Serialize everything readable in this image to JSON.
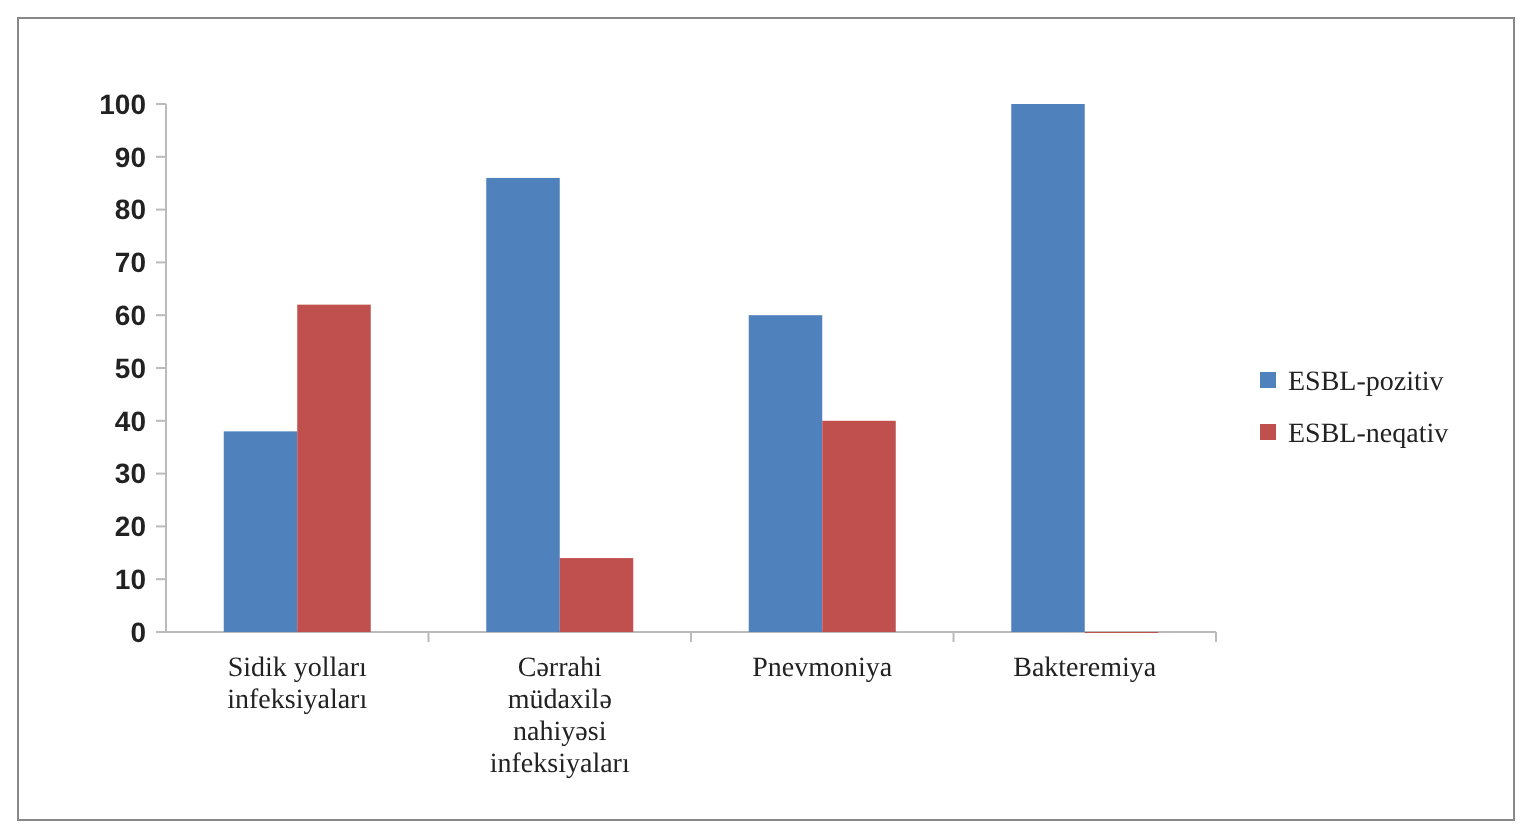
{
  "chart_data": {
    "type": "bar",
    "categories": [
      "Sidik yolları infeksiyaları",
      "Cərrahi müdaxilə nahiyəsi infeksiyaları",
      "Pnevmoniya",
      "Bakteremiya"
    ],
    "series": [
      {
        "name": "ESBL-pozitiv",
        "color": "#4f81bd",
        "values": [
          38,
          86,
          60,
          100
        ]
      },
      {
        "name": "ESBL-neqativ",
        "color": "#c0504d",
        "values": [
          62,
          14,
          40,
          0
        ]
      }
    ],
    "ylim": [
      0,
      100
    ],
    "yticks": [
      0,
      10,
      20,
      30,
      40,
      50,
      60,
      70,
      80,
      90,
      100
    ],
    "grid": false,
    "legend": "right"
  }
}
